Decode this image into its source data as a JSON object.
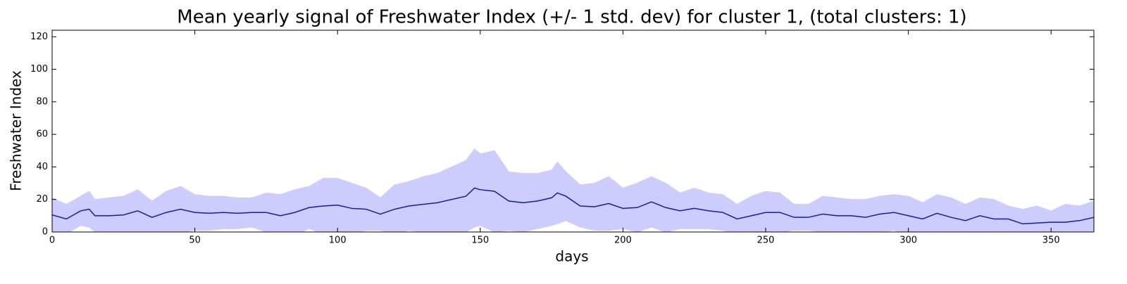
{
  "chart_data": {
    "type": "line-band",
    "title": "Mean yearly signal of Freshwater Index (+/- 1 std. dev) for cluster 1, (total clusters: 1)",
    "xlabel": "days",
    "ylabel": "Freshwater Index",
    "x": [
      0,
      5,
      10,
      13,
      15,
      20,
      25,
      30,
      35,
      40,
      45,
      50,
      55,
      60,
      65,
      70,
      75,
      80,
      85,
      90,
      95,
      100,
      105,
      110,
      115,
      120,
      125,
      130,
      135,
      140,
      145,
      148,
      150,
      155,
      160,
      165,
      170,
      175,
      177,
      180,
      185,
      190,
      195,
      200,
      205,
      210,
      215,
      220,
      225,
      230,
      235,
      240,
      245,
      250,
      255,
      260,
      265,
      270,
      275,
      280,
      285,
      290,
      295,
      300,
      305,
      310,
      315,
      320,
      325,
      330,
      335,
      340,
      345,
      350,
      355,
      360,
      365
    ],
    "values": [
      10.5,
      8,
      13,
      14,
      10,
      10,
      10.5,
      13,
      9,
      12,
      14,
      12,
      11.5,
      12,
      11.5,
      12,
      12,
      10,
      12,
      15,
      16,
      16.5,
      14.5,
      14,
      11,
      14,
      16,
      17,
      18,
      20,
      22,
      27,
      26,
      25,
      19,
      18,
      19,
      21,
      24,
      22,
      16,
      15.5,
      17.5,
      14.5,
      15,
      18.5,
      15,
      13,
      14.5,
      13,
      12,
      8,
      10,
      12,
      12,
      9,
      9,
      11,
      10,
      10,
      9,
      11,
      12,
      10,
      8,
      11.5,
      9,
      7,
      10,
      8,
      8,
      5,
      5.5,
      6,
      6,
      7,
      9
    ],
    "std": [
      10.5,
      9,
      9,
      11,
      10,
      11,
      11.5,
      13,
      10,
      13,
      14,
      11,
      10.5,
      10,
      9.5,
      9,
      12,
      13,
      14,
      13,
      17,
      16.5,
      15.5,
      13,
      10,
      15,
      15,
      17,
      18,
      20,
      22,
      24,
      22,
      25,
      18,
      18,
      17,
      17,
      19,
      15,
      13,
      14.5,
      16.5,
      12.5,
      15,
      15.5,
      15,
      11,
      12.5,
      11,
      11,
      9,
      12,
      13,
      12,
      8,
      8,
      11,
      11,
      10,
      11,
      11,
      11,
      12,
      10,
      11.5,
      12,
      10,
      11,
      12,
      8,
      9,
      10.5,
      7,
      11,
      9,
      10
    ],
    "color": "#1a1aa6",
    "band_color": "#ccccff",
    "xlim": [
      0,
      365
    ],
    "ylim": [
      0,
      124
    ],
    "xticks": [
      0,
      50,
      100,
      150,
      200,
      250,
      300,
      350
    ],
    "yticks": [
      0,
      20,
      40,
      60,
      80,
      100,
      120
    ]
  }
}
